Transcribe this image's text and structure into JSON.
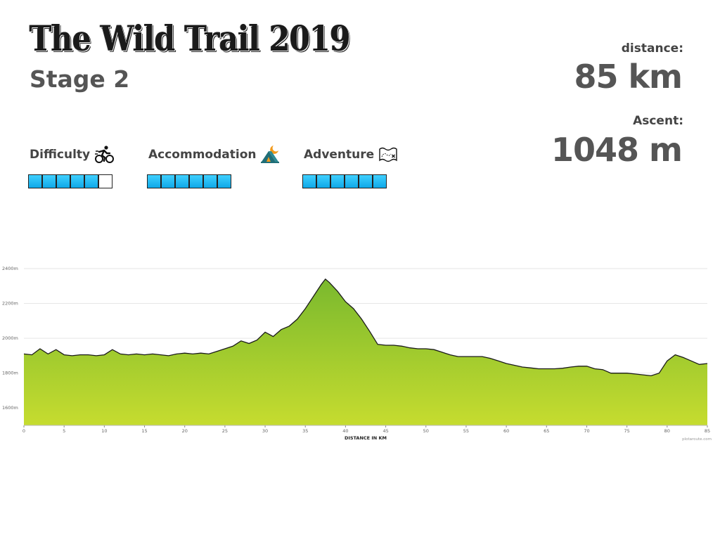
{
  "header": {
    "title": "The Wild Trail 2019",
    "subtitle": "Stage 2"
  },
  "stats": {
    "distance_label": "distance:",
    "distance_value": "85 km",
    "ascent_label": "Ascent:",
    "ascent_value": "1048 m"
  },
  "ratings": [
    {
      "label": "Difficulty",
      "icon": "cyclist-icon",
      "score": 5,
      "max": 6
    },
    {
      "label": "Accommodation",
      "icon": "tent-moon-icon",
      "score": 6,
      "max": 6
    },
    {
      "label": "Adventure",
      "icon": "treasure-map-icon",
      "score": 6,
      "max": 6
    }
  ],
  "colors": {
    "rating_fill": "#19b6f2",
    "area_top": "#7ab92e",
    "area_bottom": "#c6dc2f",
    "profile_line": "#1a1a1a"
  },
  "chart_data": {
    "type": "area",
    "xlabel": "DISTANCE IN KM",
    "ylabel": "",
    "xlim": [
      0,
      85
    ],
    "ylim": [
      1500,
      2400
    ],
    "x_ticks": [
      0,
      5,
      10,
      15,
      20,
      25,
      30,
      35,
      40,
      45,
      50,
      55,
      60,
      65,
      70,
      75,
      80,
      85
    ],
    "y_ticks": [
      "1600m",
      "1800m",
      "2000m",
      "2200m",
      "2400m"
    ],
    "grid": true,
    "credit": "plotaroute.com",
    "x": [
      0,
      1,
      2,
      3,
      4,
      5,
      6,
      7,
      8,
      9,
      10,
      11,
      12,
      13,
      14,
      15,
      16,
      17,
      18,
      19,
      20,
      21,
      22,
      23,
      24,
      25,
      26,
      27,
      28,
      29,
      30,
      31,
      32,
      33,
      34,
      35,
      36,
      37,
      37.5,
      38,
      39,
      40,
      41,
      42,
      43,
      44,
      45,
      46,
      47,
      48,
      49,
      50,
      51,
      52,
      53,
      54,
      55,
      56,
      57,
      58,
      59,
      60,
      61,
      62,
      63,
      64,
      65,
      66,
      67,
      68,
      69,
      70,
      71,
      72,
      73,
      74,
      75,
      76,
      77,
      78,
      79,
      80,
      81,
      82,
      83,
      84,
      85
    ],
    "y": [
      1910,
      1905,
      1940,
      1910,
      1935,
      1905,
      1900,
      1905,
      1905,
      1900,
      1905,
      1935,
      1910,
      1905,
      1910,
      1905,
      1910,
      1905,
      1900,
      1910,
      1915,
      1910,
      1915,
      1910,
      1925,
      1940,
      1955,
      1985,
      1970,
      1990,
      2035,
      2010,
      2050,
      2070,
      2110,
      2170,
      2240,
      2310,
      2340,
      2320,
      2270,
      2210,
      2170,
      2110,
      2040,
      1965,
      1960,
      1960,
      1955,
      1945,
      1940,
      1940,
      1935,
      1920,
      1905,
      1895,
      1895,
      1895,
      1895,
      1885,
      1870,
      1855,
      1845,
      1835,
      1830,
      1825,
      1825,
      1825,
      1828,
      1835,
      1840,
      1840,
      1825,
      1820,
      1800,
      1800,
      1800,
      1795,
      1790,
      1785,
      1800,
      1870,
      1905,
      1890,
      1870,
      1850,
      1855
    ]
  }
}
